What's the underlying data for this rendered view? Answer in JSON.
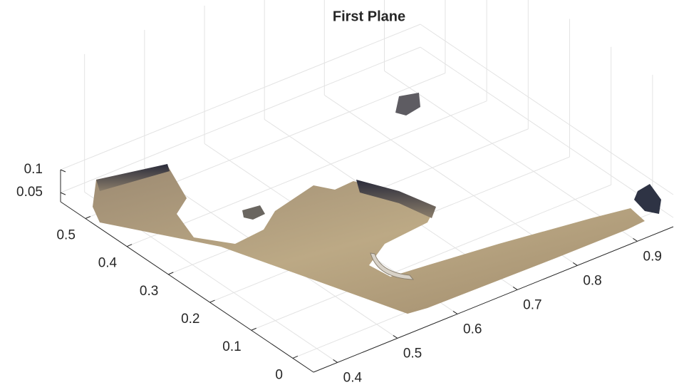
{
  "chart_data": {
    "type": "scatter3",
    "title": "First Plane",
    "xlim": [
      0.36,
      0.96
    ],
    "xticks": [
      0.4,
      0.5,
      0.6,
      0.7,
      0.8,
      0.9
    ],
    "ylim": [
      -0.05,
      0.56
    ],
    "yticks": [
      0,
      0.1,
      0.2,
      0.3,
      0.4,
      0.5
    ],
    "zlim": [
      0.03,
      0.1
    ],
    "zticks": [
      0.05,
      0.1
    ],
    "grid": true
  }
}
